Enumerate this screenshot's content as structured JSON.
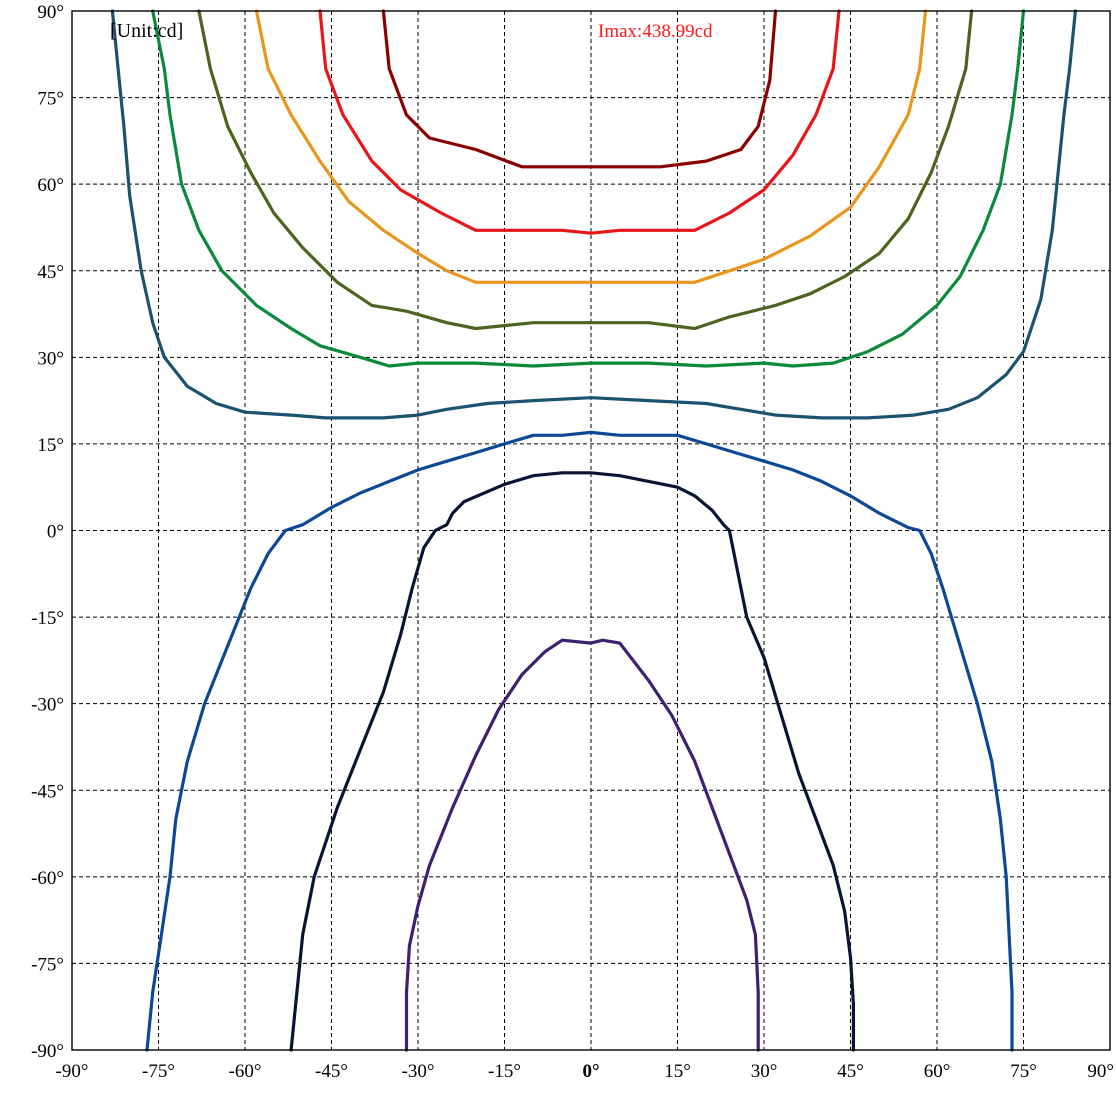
{
  "chart_data": {
    "type": "line",
    "title": "",
    "unit_label": "[Unit:cd]",
    "imax_label": "Imax:438.99cd",
    "xlim": [
      -90,
      90
    ],
    "ylim": [
      -90,
      90
    ],
    "x_ticks": [
      "-90°",
      "-75°",
      "-60°",
      "-45°",
      "-30°",
      "-15°",
      "0°",
      "15°",
      "30°",
      "45°",
      "60°",
      "75°",
      "90°"
    ],
    "y_ticks": [
      "90°",
      "75°",
      "60°",
      "45°",
      "30°",
      "15°",
      "0°",
      "-15°",
      "-30°",
      "-45°",
      "-60°",
      "-75°",
      "-90°"
    ],
    "grid": true,
    "series": [
      {
        "color": "#8b0000",
        "points": [
          [
            -36,
            90
          ],
          [
            -35,
            80
          ],
          [
            -32,
            72
          ],
          [
            -28,
            68
          ],
          [
            -20,
            66
          ],
          [
            -12,
            63
          ],
          [
            0,
            63
          ],
          [
            12,
            63
          ],
          [
            20,
            64
          ],
          [
            26,
            66
          ],
          [
            29,
            70
          ],
          [
            31,
            78
          ],
          [
            32,
            90
          ]
        ]
      },
      {
        "color": "#e8151b",
        "points": [
          [
            -47,
            90
          ],
          [
            -46,
            80
          ],
          [
            -43,
            72
          ],
          [
            -38,
            64
          ],
          [
            -33,
            59
          ],
          [
            -26,
            55
          ],
          [
            -20,
            52
          ],
          [
            -5,
            52
          ],
          [
            0,
            51.5
          ],
          [
            5,
            52
          ],
          [
            18,
            52
          ],
          [
            24,
            55
          ],
          [
            30,
            59
          ],
          [
            35,
            65
          ],
          [
            39,
            72
          ],
          [
            42,
            80
          ],
          [
            43,
            90
          ]
        ]
      },
      {
        "color": "#e8961c",
        "points": [
          [
            -58,
            90
          ],
          [
            -56,
            80
          ],
          [
            -52,
            72
          ],
          [
            -47,
            64
          ],
          [
            -42,
            57
          ],
          [
            -36,
            52
          ],
          [
            -30,
            48
          ],
          [
            -25,
            45
          ],
          [
            -20,
            43
          ],
          [
            0,
            43
          ],
          [
            18,
            43
          ],
          [
            24,
            45
          ],
          [
            30,
            47
          ],
          [
            38,
            51
          ],
          [
            45,
            56
          ],
          [
            50,
            63
          ],
          [
            55,
            72
          ],
          [
            57,
            80
          ],
          [
            58,
            90
          ]
        ]
      },
      {
        "color": "#4d6320",
        "points": [
          [
            -68,
            90
          ],
          [
            -66,
            80
          ],
          [
            -63,
            70
          ],
          [
            -59,
            62
          ],
          [
            -55,
            55
          ],
          [
            -50,
            49
          ],
          [
            -44,
            43
          ],
          [
            -38,
            39
          ],
          [
            -32,
            38
          ],
          [
            -25,
            36
          ],
          [
            -20,
            35
          ],
          [
            -10,
            36
          ],
          [
            0,
            36
          ],
          [
            10,
            36
          ],
          [
            18,
            35
          ],
          [
            24,
            37
          ],
          [
            32,
            39
          ],
          [
            38,
            41
          ],
          [
            44,
            44
          ],
          [
            50,
            48
          ],
          [
            55,
            54
          ],
          [
            59,
            62
          ],
          [
            62,
            70
          ],
          [
            65,
            80
          ],
          [
            66,
            90
          ]
        ]
      },
      {
        "color": "#0a8a3a",
        "points": [
          [
            -76,
            90
          ],
          [
            -74,
            80
          ],
          [
            -73,
            72
          ],
          [
            -71,
            60
          ],
          [
            -68,
            52
          ],
          [
            -64,
            45
          ],
          [
            -58,
            39
          ],
          [
            -52,
            35
          ],
          [
            -47,
            32
          ],
          [
            -40,
            30
          ],
          [
            -35,
            28.5
          ],
          [
            -30,
            29
          ],
          [
            -20,
            29
          ],
          [
            -10,
            28.5
          ],
          [
            0,
            29
          ],
          [
            10,
            29
          ],
          [
            20,
            28.5
          ],
          [
            30,
            29
          ],
          [
            35,
            28.5
          ],
          [
            42,
            29
          ],
          [
            48,
            31
          ],
          [
            54,
            34
          ],
          [
            60,
            39
          ],
          [
            64,
            44
          ],
          [
            68,
            52
          ],
          [
            71,
            60
          ],
          [
            73,
            72
          ],
          [
            74,
            80
          ],
          [
            75,
            90
          ]
        ]
      },
      {
        "color": "#1b5270",
        "points": [
          [
            -83,
            90
          ],
          [
            -82,
            80
          ],
          [
            -81,
            70
          ],
          [
            -80,
            58
          ],
          [
            -78,
            45
          ],
          [
            -76,
            36
          ],
          [
            -74,
            30
          ],
          [
            -70,
            25
          ],
          [
            -65,
            22
          ],
          [
            -60,
            20.5
          ],
          [
            -52,
            20
          ],
          [
            -46,
            19.5
          ],
          [
            -36,
            19.5
          ],
          [
            -30,
            20
          ],
          [
            -25,
            21
          ],
          [
            -18,
            22
          ],
          [
            -10,
            22.5
          ],
          [
            0,
            23
          ],
          [
            10,
            22.5
          ],
          [
            20,
            22
          ],
          [
            26,
            21
          ],
          [
            32,
            20
          ],
          [
            40,
            19.5
          ],
          [
            48,
            19.5
          ],
          [
            56,
            20
          ],
          [
            62,
            21
          ],
          [
            67,
            23
          ],
          [
            72,
            27
          ],
          [
            75,
            31
          ],
          [
            78,
            40
          ],
          [
            80,
            52
          ],
          [
            81,
            62
          ],
          [
            82,
            72
          ],
          [
            83,
            80
          ],
          [
            84,
            90
          ]
        ]
      },
      {
        "color": "#0e4796",
        "points": [
          [
            -77,
            -90
          ],
          [
            -76,
            -80
          ],
          [
            -74.5,
            -70
          ],
          [
            -73,
            -60
          ],
          [
            -72,
            -50
          ],
          [
            -70,
            -40
          ],
          [
            -67,
            -30
          ],
          [
            -63,
            -20
          ],
          [
            -59,
            -10
          ],
          [
            -56,
            -4
          ],
          [
            -53,
            0
          ],
          [
            -50,
            1
          ],
          [
            -45,
            4
          ],
          [
            -40,
            6.5
          ],
          [
            -35,
            8.5
          ],
          [
            -30,
            10.5
          ],
          [
            -25,
            12
          ],
          [
            -20,
            13.5
          ],
          [
            -15,
            15
          ],
          [
            -10,
            16.5
          ],
          [
            -5,
            16.5
          ],
          [
            0,
            17
          ],
          [
            5,
            16.5
          ],
          [
            10,
            16.5
          ],
          [
            15,
            16.5
          ],
          [
            20,
            15
          ],
          [
            25,
            13.5
          ],
          [
            30,
            12
          ],
          [
            35,
            10.5
          ],
          [
            40,
            8.5
          ],
          [
            45,
            6
          ],
          [
            50,
            3
          ],
          [
            55,
            0.5
          ],
          [
            57,
            0
          ],
          [
            59,
            -4
          ],
          [
            61,
            -10
          ],
          [
            64,
            -20
          ],
          [
            67,
            -30
          ],
          [
            69.5,
            -40
          ],
          [
            71,
            -50
          ],
          [
            72,
            -60
          ],
          [
            72.5,
            -70
          ],
          [
            73,
            -80
          ],
          [
            73,
            -90
          ]
        ]
      },
      {
        "color": "#0a1535",
        "points": [
          [
            -52,
            -90
          ],
          [
            -51,
            -80
          ],
          [
            -50,
            -70
          ],
          [
            -48,
            -60
          ],
          [
            -44,
            -48
          ],
          [
            -40,
            -38
          ],
          [
            -36,
            -28
          ],
          [
            -33,
            -18
          ],
          [
            -31,
            -10
          ],
          [
            -29,
            -3
          ],
          [
            -27,
            0
          ],
          [
            -25,
            1
          ],
          [
            -24,
            3
          ],
          [
            -22,
            5
          ],
          [
            -15,
            8
          ],
          [
            -10,
            9.5
          ],
          [
            -5,
            10
          ],
          [
            0,
            10
          ],
          [
            5,
            9.5
          ],
          [
            10,
            8.5
          ],
          [
            15,
            7.5
          ],
          [
            18,
            6
          ],
          [
            21,
            3.5
          ],
          [
            23,
            1
          ],
          [
            24,
            0
          ],
          [
            25,
            -5
          ],
          [
            27,
            -15
          ],
          [
            30,
            -22
          ],
          [
            33,
            -32
          ],
          [
            36,
            -42
          ],
          [
            39,
            -50
          ],
          [
            42,
            -58
          ],
          [
            44,
            -66
          ],
          [
            45,
            -74
          ],
          [
            45.5,
            -82
          ],
          [
            45.5,
            -90
          ]
        ]
      },
      {
        "color": "#3d2070",
        "points": [
          [
            -32,
            -90
          ],
          [
            -32,
            -80
          ],
          [
            -31.5,
            -72
          ],
          [
            -30,
            -65
          ],
          [
            -28,
            -58
          ],
          [
            -24,
            -48
          ],
          [
            -20,
            -39
          ],
          [
            -16,
            -31
          ],
          [
            -12,
            -25
          ],
          [
            -8,
            -21
          ],
          [
            -5,
            -19
          ],
          [
            0,
            -19.5
          ],
          [
            2,
            -19
          ],
          [
            5,
            -19.5
          ],
          [
            10,
            -26
          ],
          [
            14,
            -32
          ],
          [
            18,
            -40
          ],
          [
            21,
            -48
          ],
          [
            24,
            -56
          ],
          [
            27,
            -64
          ],
          [
            28.5,
            -70
          ],
          [
            29,
            -80
          ],
          [
            29,
            -90
          ]
        ]
      }
    ]
  }
}
